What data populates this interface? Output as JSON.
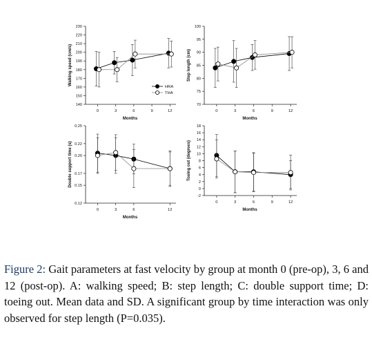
{
  "caption": {
    "label": "Figure 2:",
    "text": " Gait parameters at fast velocity by group at month 0 (pre-op), 3, 6 and 12 (post-op). A: walking speed; B: step length; C: double support time; D: toeing out. Mean data and SD. A significant group by time interaction was only observed for step length (P=0.035)."
  },
  "chart_data": [
    {
      "type": "line",
      "panel": "A",
      "xlabel": "Months",
      "ylabel": "Walking speed (cm/s)",
      "x": [
        0,
        3,
        6,
        12
      ],
      "xticks": [
        0,
        3,
        6,
        9,
        12
      ],
      "xlim": [
        -2,
        13
      ],
      "ylim": [
        140,
        230
      ],
      "yticks": [
        140,
        150,
        160,
        170,
        180,
        190,
        200,
        210,
        220,
        230
      ],
      "legend": "center-right",
      "series": [
        {
          "name": "HRA",
          "marker": "filled",
          "values": [
            181,
            188,
            191,
            199
          ],
          "sd": [
            20,
            13,
            18,
            17
          ]
        },
        {
          "name": "THA",
          "marker": "open",
          "values": [
            180,
            180,
            198,
            198
          ],
          "sd": [
            20,
            14,
            16,
            15
          ]
        }
      ]
    },
    {
      "type": "line",
      "panel": "B",
      "xlabel": "Months",
      "ylabel": "Step length (cm)",
      "x": [
        0,
        3,
        6,
        12
      ],
      "xticks": [
        0,
        3,
        6,
        9,
        12
      ],
      "xlim": [
        -2,
        13
      ],
      "ylim": [
        70,
        100
      ],
      "yticks": [
        70,
        75,
        80,
        85,
        90,
        95,
        100
      ],
      "series": [
        {
          "name": "HRA",
          "marker": "filled",
          "values": [
            84,
            86.5,
            88,
            89.5
          ],
          "sd": [
            7.5,
            8,
            5,
            6.5
          ]
        },
        {
          "name": "THA",
          "marker": "open",
          "values": [
            85.5,
            84,
            89,
            90
          ],
          "sd": [
            6.5,
            7.5,
            5.5,
            6
          ]
        }
      ]
    },
    {
      "type": "line",
      "panel": "C",
      "xlabel": "Months",
      "ylabel": "Double support time (s)",
      "x": [
        0,
        3,
        6,
        12
      ],
      "xticks": [
        0,
        3,
        6,
        12
      ],
      "xlim": [
        -2,
        13
      ],
      "ylim": [
        0.12,
        0.25
      ],
      "yticks": [
        0.12,
        0.15,
        0.17,
        0.2,
        0.22,
        0.25
      ],
      "ytick_labels": [
        "0.12",
        "0.15",
        "0.17",
        "0.20",
        "0.22",
        "0.25"
      ],
      "series": [
        {
          "name": "HRA",
          "marker": "filled",
          "values": [
            0.204,
            0.2,
            0.194,
            0.178
          ],
          "sd": [
            0.032,
            0.03,
            0.025,
            0.028
          ]
        },
        {
          "name": "THA",
          "marker": "open",
          "values": [
            0.2,
            0.205,
            0.178,
            0.178
          ],
          "sd": [
            0.03,
            0.03,
            0.032,
            0.03
          ]
        }
      ]
    },
    {
      "type": "line",
      "panel": "D",
      "xlabel": "Months",
      "ylabel": "Toeing out (degrees)",
      "x": [
        0,
        3,
        6,
        12
      ],
      "xticks": [
        0,
        3,
        6,
        9,
        12
      ],
      "xlim": [
        -2,
        13
      ],
      "ylim": [
        -2,
        18
      ],
      "yticks": [
        -2,
        0,
        2,
        4,
        6,
        8,
        10,
        12,
        14,
        16,
        18
      ],
      "series": [
        {
          "name": "HRA",
          "marker": "filled",
          "values": [
            9.5,
            4.8,
            4.8,
            4.0
          ],
          "sd": [
            6,
            6,
            5.5,
            4
          ]
        },
        {
          "name": "THA",
          "marker": "open",
          "values": [
            8.5,
            4.8,
            4.6,
            4.6
          ],
          "sd": [
            5.5,
            6,
            5.5,
            5
          ]
        }
      ]
    }
  ],
  "colors": {
    "axis": "#222222",
    "text": "#111111",
    "filled_marker": "#000000",
    "open_marker_fill": "#ffffff",
    "caption_label": "#1a3a6b"
  }
}
